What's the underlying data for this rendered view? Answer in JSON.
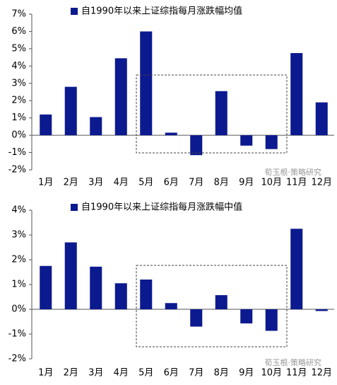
{
  "chart_data": [
    {
      "type": "bar",
      "categories": [
        "1月",
        "2月",
        "3月",
        "4月",
        "5月",
        "6月",
        "7月",
        "8月",
        "9月",
        "10月",
        "11月",
        "12月"
      ],
      "series": [
        {
          "name": "自1990年以来上证综指每月涨跌幅均值",
          "color": "#0c1a8f",
          "values": [
            1.2,
            2.8,
            1.05,
            4.45,
            6.0,
            0.15,
            -1.15,
            2.55,
            -0.6,
            -0.8,
            4.75,
            1.9
          ]
        }
      ],
      "ylim": [
        -2,
        7
      ],
      "yticks": [
        {
          "value": -2,
          "label": "-2%"
        },
        {
          "value": -1,
          "label": "-1%"
        },
        {
          "value": 0,
          "label": "0%"
        },
        {
          "value": 1,
          "label": "1%"
        },
        {
          "value": 2,
          "label": "2%"
        },
        {
          "value": 3,
          "label": "3%"
        },
        {
          "value": 4,
          "label": "4%"
        },
        {
          "value": 5,
          "label": "5%"
        },
        {
          "value": 6,
          "label": "6%"
        },
        {
          "value": 7,
          "label": "7%"
        }
      ],
      "watermark": "荀玉根·策略研究"
    },
    {
      "type": "bar",
      "categories": [
        "1月",
        "2月",
        "3月",
        "4月",
        "5月",
        "6月",
        "7月",
        "8月",
        "9月",
        "10月",
        "11月",
        "12月"
      ],
      "series": [
        {
          "name": "自1990年以来上证综指每月涨跌幅中值",
          "color": "#0c1a8f",
          "values": [
            1.75,
            2.7,
            1.72,
            1.05,
            1.2,
            0.25,
            -0.7,
            0.57,
            -0.57,
            -0.87,
            3.25,
            -0.07
          ]
        }
      ],
      "ylim": [
        -2,
        4
      ],
      "yticks": [
        {
          "value": -2,
          "label": "-2%"
        },
        {
          "value": -1,
          "label": "-1%"
        },
        {
          "value": 0,
          "label": "0%"
        },
        {
          "value": 1,
          "label": "1%"
        },
        {
          "value": 2,
          "label": "2%"
        },
        {
          "value": 3,
          "label": "3%"
        },
        {
          "value": 4,
          "label": "4%"
        }
      ],
      "watermark": "荀玉根·策略研究"
    }
  ]
}
